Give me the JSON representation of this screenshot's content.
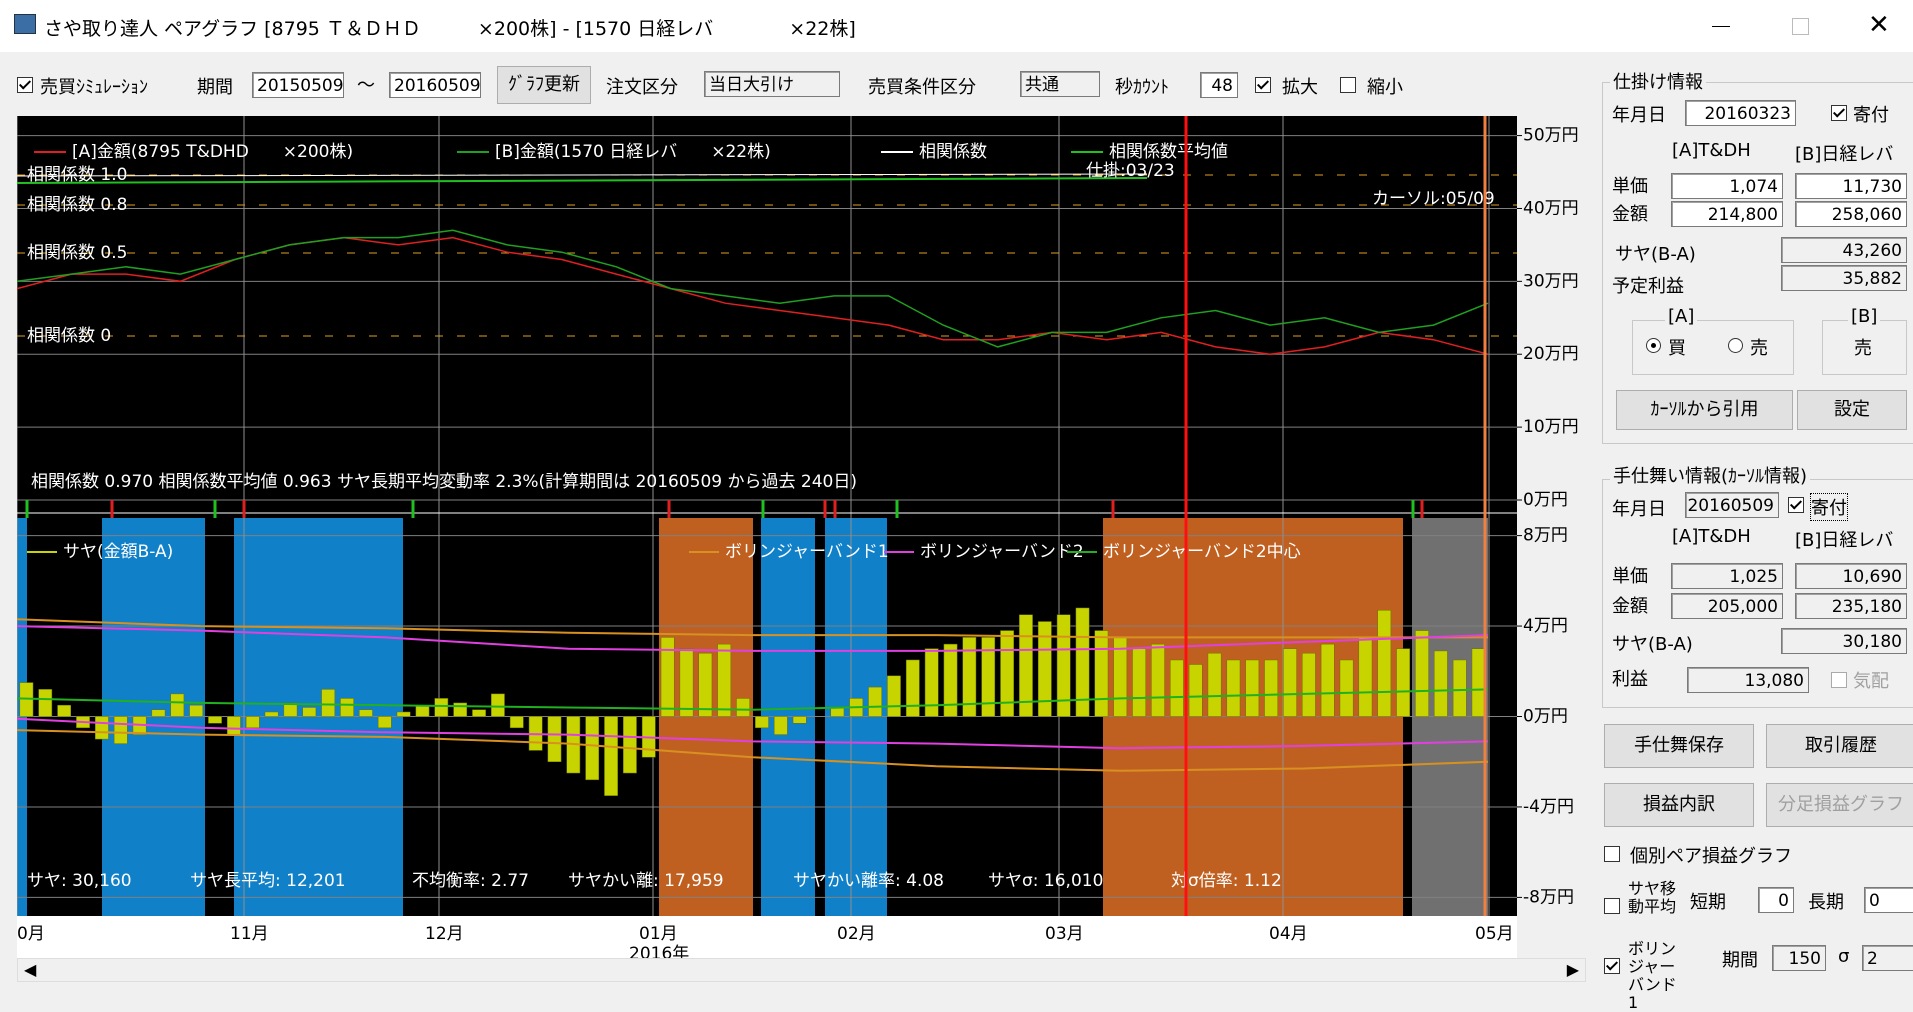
{
  "window": {
    "title": "さや取り達人 ペアグラフ [8795 Ｔ＆ＤＨＤ　　　×200株] - [1570 日経レバ　　　　×22株]"
  },
  "toolbar": {
    "sim_label": "売買ｼﾐｭﾚｰｼｮﾝ",
    "sim_checked": true,
    "period_label": "期間",
    "from": "20150509",
    "tilde": "～",
    "to": "20160509",
    "update_button": "ｸﾞﾗﾌ更新",
    "order_label": "注文区分",
    "order_value": "当日大引け",
    "cond_label": "売買条件区分",
    "cond_value": "共通",
    "sec_label": "秒ｶｳﾝﾄ",
    "sec_value": "48",
    "zoom_in": "拡大",
    "zoom_in_checked": true,
    "zoom_out": "縮小",
    "zoom_out_checked": false
  },
  "chart_data": [
    {
      "type": "line",
      "series": [
        {
          "name": "[A]金額(8795 T&DHD　　×200株)",
          "color": "#e02020",
          "values": [
            29,
            31,
            31,
            30,
            33,
            35,
            36,
            35,
            36,
            34,
            33,
            31,
            29,
            27,
            26,
            25,
            24,
            22,
            22,
            23,
            22,
            23,
            21,
            20,
            21,
            23,
            22,
            20
          ]
        },
        {
          "name": "[B]金額(1570 日経レバ　　×22株)",
          "color": "#20a020",
          "values": [
            30,
            31,
            32,
            31,
            33,
            35,
            36,
            36,
            37,
            35,
            34,
            32,
            29,
            28,
            27,
            28,
            28,
            24,
            21,
            23,
            23,
            25,
            26,
            24,
            25,
            23,
            24,
            27
          ]
        }
      ],
      "legend_extra": [
        {
          "name": "相関係数",
          "color": "#ffffff"
        },
        {
          "name": "相関係数平均値",
          "color": "#20c020"
        }
      ],
      "correlation_labels": [
        "相関係数 1.0",
        "相関係数 0.8",
        "相関係数 0.5",
        "相関係数 0"
      ],
      "entry_marker": "仕掛:03/23",
      "cursor_marker": "カーソル:05/09",
      "info": "相関係数 0.970 相関係数平均値 0.963 サヤ長期平均変動率 2.3%(計算期間は 20160509 から過去 240日)",
      "ylim": [
        0,
        52
      ],
      "yticks": [
        {
          "value": 50,
          "label": "50万円"
        },
        {
          "value": 40,
          "label": "40万円"
        },
        {
          "value": 30,
          "label": "30万円"
        },
        {
          "value": 20,
          "label": "20万円"
        },
        {
          "value": 10,
          "label": "10万円"
        },
        {
          "value": 0,
          "label": "0万円"
        }
      ],
      "grid": true
    },
    {
      "type": "bar",
      "series": [
        {
          "name": "サヤ(金額B-A)",
          "color": "#c8d400",
          "values": [
            1.5,
            1.2,
            0.5,
            -0.5,
            -1.0,
            -1.2,
            -0.8,
            0.3,
            1.0,
            0.5,
            -0.3,
            -0.8,
            -0.5,
            0.2,
            0.6,
            0.4,
            1.2,
            0.8,
            0.3,
            -0.5,
            0.2,
            0.5,
            0.8,
            0.6,
            0.3,
            1.0,
            -0.5,
            -1.5,
            -2.0,
            -2.5,
            -2.8,
            -3.5,
            -2.5,
            -1.8,
            3.5,
            3.0,
            2.8,
            3.2,
            0.8,
            -0.5,
            -0.8,
            -0.3,
            0,
            0.4,
            0.8,
            1.3,
            1.8,
            2.5,
            3.0,
            3.2,
            3.5,
            3.5,
            3.8,
            4.5,
            4.2,
            4.5,
            4.8,
            3.8,
            3.5,
            3.0,
            3.2,
            2.5,
            2.3,
            2.8,
            2.5,
            2.5,
            2.5,
            3.0,
            2.8,
            3.2,
            2.5,
            3.5,
            4.7,
            3.0,
            3.8,
            2.9,
            2.5,
            3.0
          ]
        },
        {
          "name": "ボリンジャーバンド1",
          "color": "#d89020",
          "values": [
            4.3,
            4.0,
            3.9,
            3.7,
            3.6,
            3.6,
            3.5,
            3.5,
            3.5
          ],
          "lower": [
            -0.6,
            -0.8,
            -0.9,
            -1.2,
            -1.8,
            -2.2,
            -2.4,
            -2.3,
            -2.0
          ]
        },
        {
          "name": "ボリンジャーバンド2",
          "color": "#e040e0",
          "values": [
            4.0,
            3.8,
            3.5,
            3.0,
            2.9,
            2.9,
            3.0,
            3.3,
            3.6
          ],
          "lower": [
            -0.1,
            -0.5,
            -0.7,
            -0.8,
            -1.1,
            -1.2,
            -1.4,
            -1.3,
            -1.1
          ]
        },
        {
          "name": "ボリンジャーバンド2中心",
          "color": "#20b020",
          "values": [
            0.8,
            0.6,
            0.5,
            0.4,
            0.3,
            0.5,
            0.8,
            1.0,
            1.2
          ]
        }
      ],
      "stats": [
        "サヤ: 30,160",
        "サヤ長平均: 12,201",
        "不均衡率: 2.77",
        "サヤかい離: 17,959",
        "サヤかい離率: 4.08",
        "サヤσ: 16,010",
        "対σ倍率: 1.12"
      ],
      "ylim": [
        -9,
        9
      ],
      "yticks": [
        {
          "value": 8,
          "label": "8万円"
        },
        {
          "value": 4,
          "label": "4万円"
        },
        {
          "value": 0,
          "label": "0万円"
        },
        {
          "value": -4,
          "label": "-4万円"
        },
        {
          "value": -8,
          "label": "-8万円"
        }
      ],
      "grid": true
    }
  ],
  "x_axis": {
    "months": [
      "0月",
      "11月",
      "12月",
      "01月",
      "02月",
      "03月",
      "04月",
      "05月"
    ],
    "year": "2016年"
  },
  "entry": {
    "title": "仕掛け情報",
    "date_label": "年月日",
    "date": "20160323",
    "open_label": "寄付",
    "open_checked": true,
    "col_a": "[A]T&DH",
    "col_b": "[B]日経レバ",
    "price_label": "単価",
    "price_a": "1,074",
    "price_b": "11,730",
    "amount_label": "金額",
    "amount_a": "214,800",
    "amount_b": "258,060",
    "spread_label": "サヤ(B-A)",
    "spread": "43,260",
    "profit_label": "予定利益",
    "profit": "35,882",
    "a_group": "[A]",
    "buy": "買",
    "sell": "売",
    "buy_selected": true,
    "b_group": "[B]",
    "b_side": "売",
    "quote_button": "ｶｰｿﾙから引用",
    "settings_button": "設定"
  },
  "exit": {
    "title": "手仕舞い情報(ｶｰｿﾙ情報)",
    "date_label": "年月日",
    "date": "20160509",
    "open_label": "寄付",
    "open_checked": true,
    "col_a": "[A]T&DH",
    "col_b": "[B]日経レバ",
    "price_label": "単価",
    "price_a": "1,025",
    "price_b": "10,690",
    "amount_label": "金額",
    "amount_a": "205,000",
    "amount_b": "235,180",
    "spread_label": "サヤ(B-A)",
    "spread": "30,180",
    "profit_label": "利益",
    "profit": "13,080",
    "quote_label": "気配",
    "quote_checked": false
  },
  "buttons": {
    "save": "手仕舞保存",
    "history": "取引履歴",
    "breakdown": "損益内訳",
    "minute_graph": "分足損益グラフ"
  },
  "options": {
    "pair_graph": "個別ペア損益グラフ",
    "pair_graph_checked": false,
    "ma_label": "サヤ移動平均",
    "ma_checked": false,
    "short_label": "短期",
    "short_value": "0",
    "long_label": "長期",
    "long_value": "0",
    "bb_label": "ボリンジャーバンド1",
    "bb_checked": true,
    "bb_period_label": "期間",
    "bb_period": "150",
    "sigma_label": "σ",
    "sigma": "2"
  }
}
